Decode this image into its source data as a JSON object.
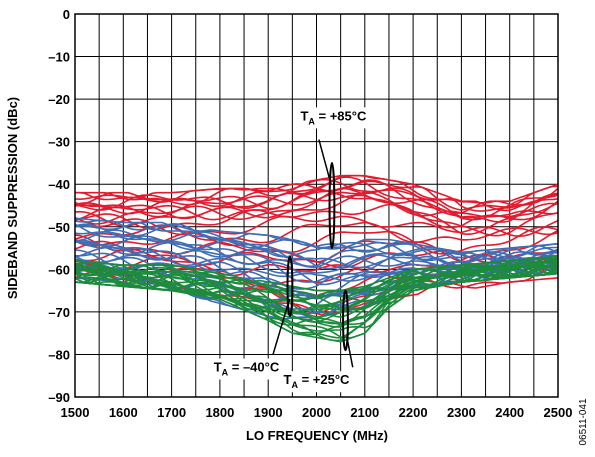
{
  "chart_data": {
    "type": "line",
    "xlabel": "LO FREQUENCY (MHz)",
    "ylabel": "SIDEBAND SUPPRESSION (dBc)",
    "xlim": [
      1500,
      2500
    ],
    "ylim": [
      -90,
      0
    ],
    "x_ticks": [
      "1500",
      "1600",
      "1700",
      "1800",
      "1900",
      "2000",
      "2100",
      "2200",
      "2300",
      "2400",
      "2500"
    ],
    "y_ticks": [
      "0",
      "–10",
      "–20",
      "–30",
      "–40",
      "–50",
      "–60",
      "–70",
      "–80",
      "–90"
    ],
    "x_minor_step": 50,
    "grid": true,
    "figure_id": "06511-041",
    "series": [
      {
        "name": "TA = +85°C",
        "color": "#e31b2f",
        "x": [
          1500,
          1600,
          1700,
          1800,
          1900,
          1950,
          2000,
          2050,
          2100,
          2150,
          2200,
          2300,
          2400,
          2500
        ],
        "y_typical": [
          -48,
          -48,
          -48,
          -48,
          -47,
          -46,
          -45,
          -44,
          -44,
          -45,
          -47,
          -50,
          -49,
          -46
        ],
        "y_upper": [
          -42,
          -42,
          -42,
          -41,
          -41,
          -40,
          -39,
          -38,
          -38,
          -39,
          -40,
          -44,
          -44,
          -40
        ],
        "y_lower": [
          -62,
          -63,
          -64,
          -66,
          -68,
          -70,
          -71,
          -70,
          -68,
          -67,
          -66,
          -65,
          -63,
          -62
        ]
      },
      {
        "name": "TA = +25°C",
        "color": "#1c8c3c",
        "x": [
          1500,
          1600,
          1700,
          1800,
          1900,
          1950,
          2000,
          2050,
          2100,
          2150,
          2200,
          2300,
          2400,
          2500
        ],
        "y_typical": [
          -61,
          -62,
          -63,
          -65,
          -68,
          -70,
          -71,
          -71,
          -69,
          -66,
          -63,
          -61,
          -60,
          -59
        ],
        "y_upper": [
          -58,
          -59,
          -59,
          -61,
          -63,
          -64,
          -65,
          -65,
          -64,
          -62,
          -60,
          -59,
          -58,
          -57
        ],
        "y_lower": [
          -63,
          -64,
          -65,
          -67,
          -72,
          -75,
          -76,
          -77,
          -75,
          -69,
          -65,
          -63,
          -62,
          -61
        ]
      },
      {
        "name": "TA = –40°C",
        "color": "#3f6eb5",
        "x": [
          1500,
          1600,
          1700,
          1800,
          1900,
          1950,
          2000,
          2050,
          2100,
          2150,
          2200,
          2300,
          2400,
          2500
        ],
        "y_typical": [
          -55,
          -56,
          -57,
          -58,
          -60,
          -62,
          -63,
          -62,
          -61,
          -60,
          -59,
          -60,
          -59,
          -58
        ],
        "y_upper": [
          -48,
          -49,
          -49,
          -51,
          -52,
          -53,
          -54,
          -53,
          -53,
          -53,
          -54,
          -56,
          -55,
          -54
        ],
        "y_lower": [
          -62,
          -63,
          -65,
          -68,
          -71,
          -72,
          -72,
          -70,
          -69,
          -67,
          -64,
          -63,
          -62,
          -61
        ]
      }
    ],
    "annotations": [
      {
        "main": "T",
        "sub": "A",
        "rest": " = +85°C",
        "x": 2035,
        "y": -25,
        "target_x": 2032,
        "target_y": -45
      },
      {
        "main": "T",
        "sub": "A",
        "rest": " = –40°C",
        "x": 1855,
        "y": -84,
        "target_x": 1945,
        "target_y": -64
      },
      {
        "main": "T",
        "sub": "A",
        "rest": " = +25°C",
        "x": 2000,
        "y": -87,
        "target_x": 2060,
        "target_y": -72
      }
    ]
  }
}
